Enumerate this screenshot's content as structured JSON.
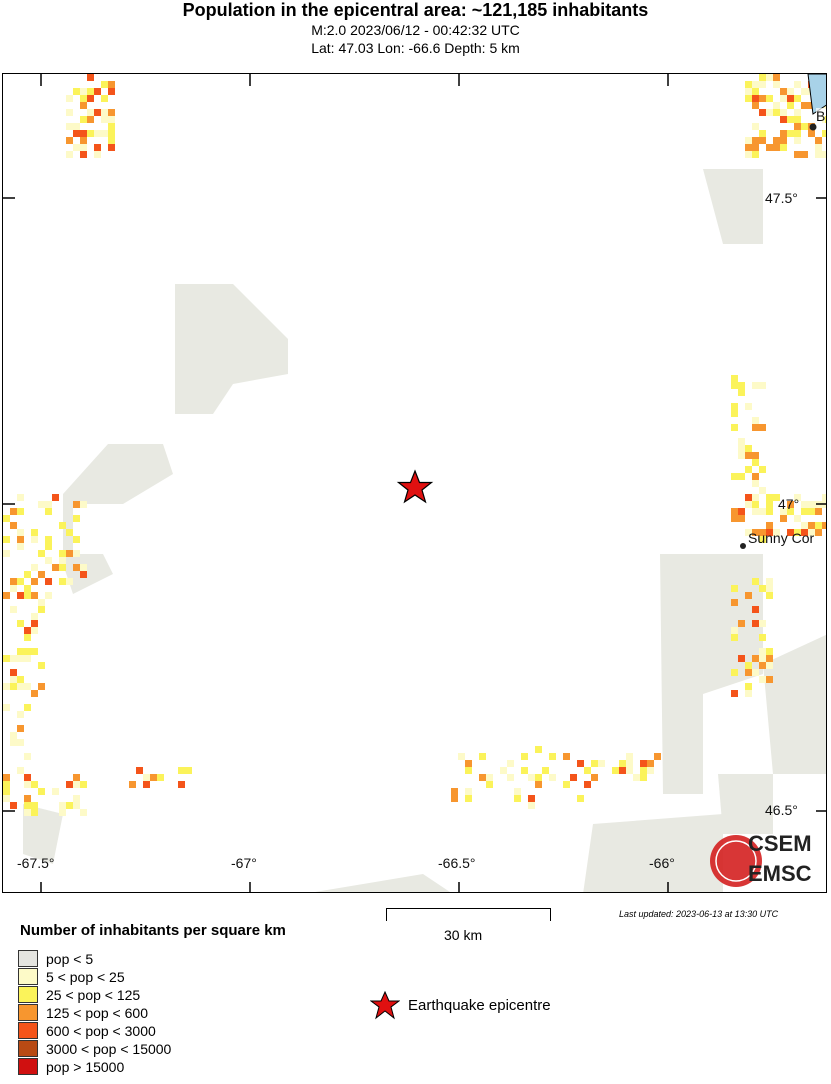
{
  "header": {
    "title": "Population in the epicentral area: ~121,185 inhabitants",
    "line1": "M:2.0 2023/06/12 - 00:42:32 UTC",
    "line2": "Lat: 47.03 Lon: -66.6 Depth: 5 km"
  },
  "map": {
    "lat_ticks": [
      "47.5°",
      "47°",
      "46.5°"
    ],
    "lon_ticks": [
      "-67.5°",
      "-67°",
      "-66.5°",
      "-66°"
    ],
    "places": [
      {
        "name": "Sunny Cor"
      },
      {
        "name": "B"
      }
    ],
    "logo": {
      "top": "CSEM",
      "bottom": "EMSC"
    },
    "water_color": "#a8d2e8"
  },
  "scale": {
    "label": "30 km"
  },
  "updated": "Last updated: 2023-06-13 at 13:30 UTC",
  "legend": {
    "title": "Number of inhabitants per square km",
    "items": [
      {
        "label": "pop < 5",
        "color": "#e4e4e0"
      },
      {
        "label": "5 < pop < 25",
        "color": "#fdfac8"
      },
      {
        "label": "25 < pop < 125",
        "color": "#fbf35a"
      },
      {
        "label": "125 < pop < 600",
        "color": "#f7962f"
      },
      {
        "label": "600 < pop < 3000",
        "color": "#f4541a"
      },
      {
        "label": "3000 < pop < 15000",
        "color": "#b84a14"
      },
      {
        "label": "pop > 15000",
        "color": "#d01010"
      }
    ],
    "epicentre_label": "Earthquake epicentre"
  }
}
